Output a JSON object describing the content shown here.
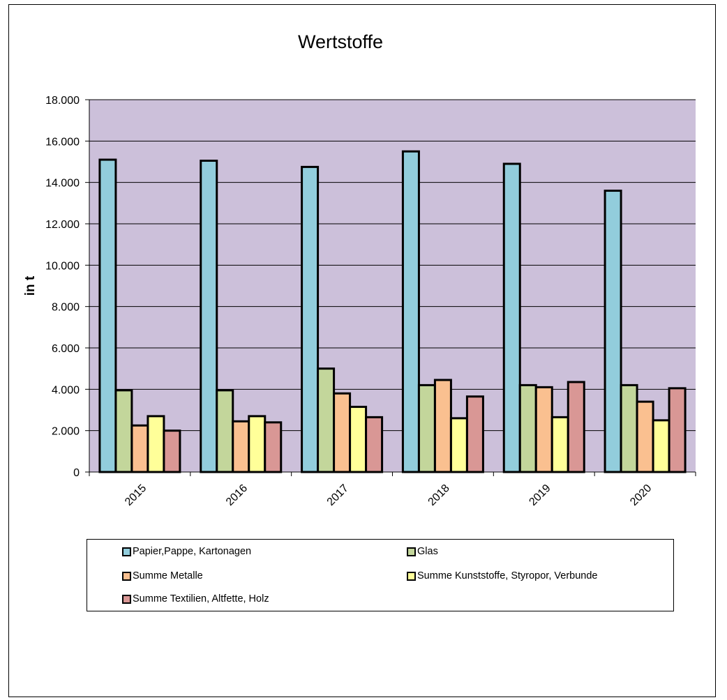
{
  "chart_data": {
    "type": "bar",
    "title": "Wertstoffe",
    "xlabel": "",
    "ylabel": "in t",
    "ylim": [
      0,
      18000
    ],
    "yticks": [
      0,
      2000,
      4000,
      6000,
      8000,
      10000,
      12000,
      14000,
      16000,
      18000
    ],
    "ytick_labels": [
      "0",
      "2.000",
      "4.000",
      "6.000",
      "8.000",
      "10.000",
      "12.000",
      "14.000",
      "16.000",
      "18.000"
    ],
    "categories": [
      "2015",
      "2016",
      "2017",
      "2018",
      "2019",
      "2020"
    ],
    "plot_background": "#ccc0da",
    "grid": true,
    "legend_position": "bottom",
    "series": [
      {
        "name": "Papier,Pappe, Kartonagen",
        "color": "#92cddc",
        "values": [
          15100,
          15050,
          14750,
          15500,
          14900,
          13600
        ]
      },
      {
        "name": "Glas",
        "color": "#c3d69b",
        "values": [
          3950,
          3950,
          5000,
          4200,
          4200,
          4200
        ]
      },
      {
        "name": "Summe Metalle",
        "color": "#fac090",
        "values": [
          2250,
          2450,
          3800,
          4450,
          4100,
          3400
        ]
      },
      {
        "name": "Summe Kunststoffe, Styropor, Verbunde",
        "color": "#ffff99",
        "values": [
          2700,
          2700,
          3150,
          2600,
          2650,
          2500
        ]
      },
      {
        "name": "Summe Textilien, Altfette, Holz",
        "color": "#d99795",
        "values": [
          2000,
          2400,
          2650,
          3650,
          4350,
          4050
        ]
      }
    ]
  }
}
